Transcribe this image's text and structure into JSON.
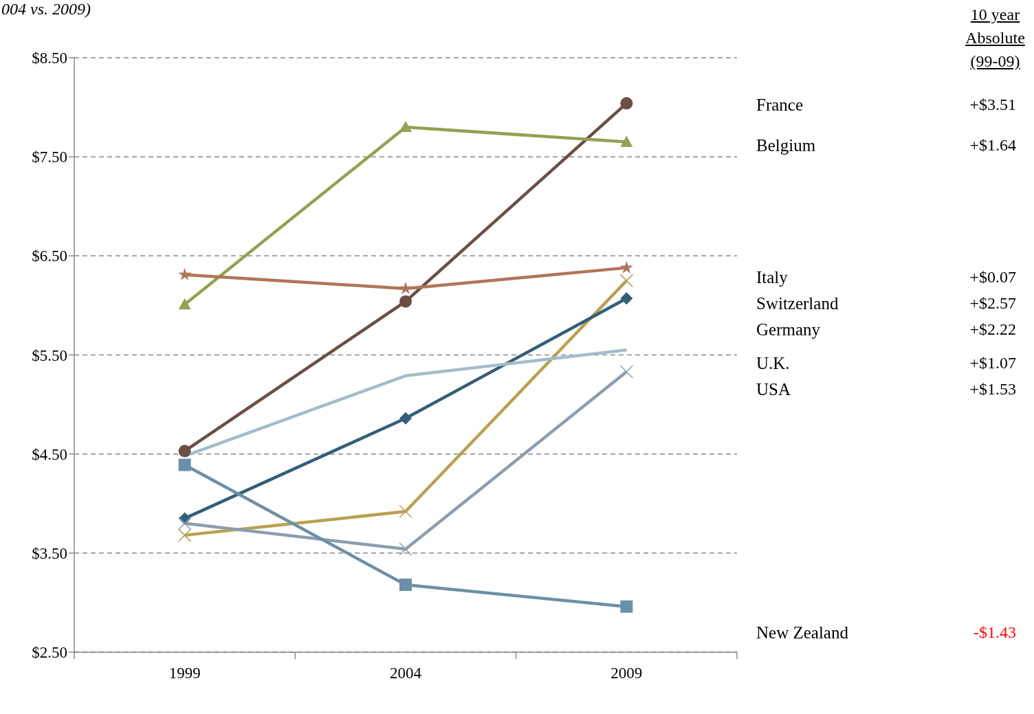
{
  "chart_data": {
    "type": "line",
    "subtitle": "004 vs. 2009)",
    "categories": [
      "1999",
      "2004",
      "2009"
    ],
    "ylim": [
      2.5,
      8.5
    ],
    "yticks": [
      {
        "value": 2.5,
        "label": "$2.50"
      },
      {
        "value": 3.5,
        "label": "$3.50"
      },
      {
        "value": 4.5,
        "label": "$4.50"
      },
      {
        "value": 5.5,
        "label": "$5.50"
      },
      {
        "value": 6.5,
        "label": "$6.50"
      },
      {
        "value": 7.5,
        "label": "$7.50"
      },
      {
        "value": 8.5,
        "label": "$8.50"
      }
    ],
    "grid": "y",
    "legend": "right",
    "annotations": [
      "10 year Absolute (99-09)",
      "+$3.51",
      "+$1.64",
      "+$0.07",
      "+$2.57",
      "+$2.22",
      "+$1.07",
      "+$1.53",
      "-$1.43"
    ],
    "series": [
      {
        "name": "France",
        "color": "#6b4e44",
        "marker": "circle",
        "values": [
          4.53,
          6.04,
          8.04
        ]
      },
      {
        "name": "Belgium",
        "color": "#95a052",
        "marker": "triangle",
        "values": [
          6.01,
          7.8,
          7.65
        ]
      },
      {
        "name": "Italy",
        "color": "#b07556",
        "marker": "star",
        "values": [
          6.31,
          6.17,
          6.38
        ]
      },
      {
        "name": "Switzerland",
        "color": "#b9a051",
        "marker": "cross",
        "values": [
          3.68,
          3.92,
          6.25
        ]
      },
      {
        "name": "Germany",
        "color": "#335e7a",
        "marker": "diamond",
        "values": [
          3.85,
          4.86,
          6.07
        ]
      },
      {
        "name": "U.K.",
        "color": "#a3bccb",
        "marker": "none",
        "values": [
          4.48,
          5.29,
          5.55
        ]
      },
      {
        "name": "USA",
        "color": "#8c9daf",
        "marker": "cross",
        "values": [
          3.8,
          3.54,
          5.33
        ]
      },
      {
        "name": "New Zealand",
        "color": "#6a90a8",
        "marker": "square",
        "values": [
          4.39,
          3.18,
          2.96
        ]
      }
    ]
  }
}
